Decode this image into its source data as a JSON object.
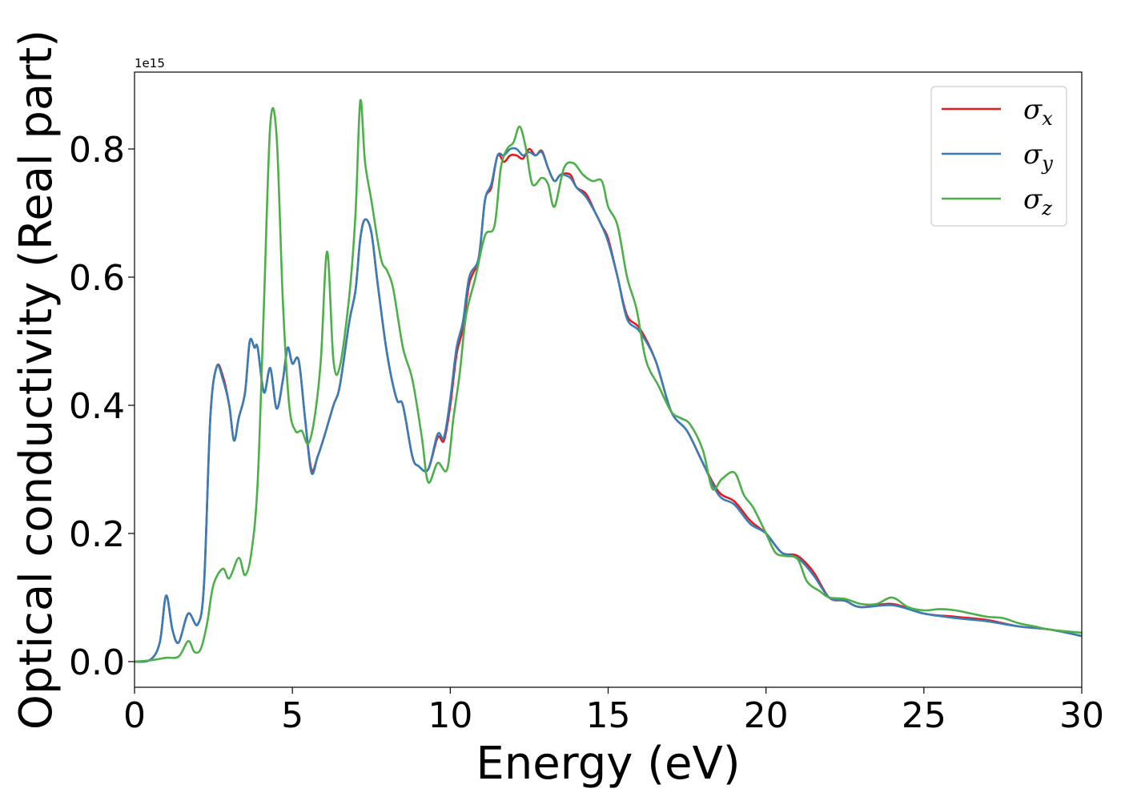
{
  "chart_data": {
    "type": "line",
    "xlabel": "Energy (eV)",
    "ylabel": "Optical conductivity (Real part)",
    "y_offset_label": "1e15",
    "xlim": [
      0,
      30
    ],
    "ylim": [
      -0.04,
      0.92
    ],
    "x_ticks": [
      0,
      5,
      10,
      15,
      20,
      25,
      30
    ],
    "y_ticks": [
      0.0,
      0.2,
      0.4,
      0.6,
      0.8
    ],
    "x_tick_labels": [
      "0",
      "5",
      "10",
      "15",
      "20",
      "25",
      "30"
    ],
    "y_tick_labels": [
      "0.0",
      "0.2",
      "0.4",
      "0.6",
      "0.8"
    ],
    "grid": false,
    "legend": {
      "position": "top-right"
    },
    "series": [
      {
        "name": "σx",
        "symbol": "σ",
        "subscript": "x",
        "color": "#e41a1c",
        "points": [
          [
            0,
            0
          ],
          [
            0.5,
            0.003
          ],
          [
            0.8,
            0.03
          ],
          [
            1.0,
            0.103
          ],
          [
            1.2,
            0.05
          ],
          [
            1.4,
            0.03
          ],
          [
            1.7,
            0.075
          ],
          [
            2.0,
            0.058
          ],
          [
            2.2,
            0.12
          ],
          [
            2.4,
            0.38
          ],
          [
            2.6,
            0.46
          ],
          [
            2.8,
            0.445
          ],
          [
            3.0,
            0.4
          ],
          [
            3.15,
            0.345
          ],
          [
            3.3,
            0.38
          ],
          [
            3.5,
            0.42
          ],
          [
            3.65,
            0.5
          ],
          [
            3.8,
            0.49
          ],
          [
            3.9,
            0.49
          ],
          [
            4.1,
            0.42
          ],
          [
            4.3,
            0.458
          ],
          [
            4.5,
            0.395
          ],
          [
            4.7,
            0.44
          ],
          [
            4.85,
            0.49
          ],
          [
            5.0,
            0.465
          ],
          [
            5.2,
            0.47
          ],
          [
            5.4,
            0.38
          ],
          [
            5.6,
            0.3
          ],
          [
            5.8,
            0.32
          ],
          [
            6.0,
            0.35
          ],
          [
            6.3,
            0.4
          ],
          [
            6.5,
            0.43
          ],
          [
            6.8,
            0.53
          ],
          [
            7.0,
            0.58
          ],
          [
            7.15,
            0.66
          ],
          [
            7.3,
            0.69
          ],
          [
            7.5,
            0.67
          ],
          [
            7.7,
            0.59
          ],
          [
            8.0,
            0.48
          ],
          [
            8.3,
            0.41
          ],
          [
            8.5,
            0.4
          ],
          [
            8.8,
            0.32
          ],
          [
            9.0,
            0.305
          ],
          [
            9.3,
            0.3
          ],
          [
            9.6,
            0.35
          ],
          [
            9.8,
            0.345
          ],
          [
            10.0,
            0.4
          ],
          [
            10.2,
            0.48
          ],
          [
            10.4,
            0.52
          ],
          [
            10.6,
            0.59
          ],
          [
            10.9,
            0.63
          ],
          [
            11.1,
            0.72
          ],
          [
            11.3,
            0.74
          ],
          [
            11.5,
            0.79
          ],
          [
            11.7,
            0.78
          ],
          [
            11.9,
            0.79
          ],
          [
            12.1,
            0.79
          ],
          [
            12.3,
            0.785
          ],
          [
            12.5,
            0.8
          ],
          [
            12.7,
            0.79
          ],
          [
            12.9,
            0.797
          ],
          [
            13.1,
            0.77
          ],
          [
            13.3,
            0.75
          ],
          [
            13.5,
            0.76
          ],
          [
            13.8,
            0.76
          ],
          [
            14.0,
            0.74
          ],
          [
            14.3,
            0.73
          ],
          [
            14.6,
            0.7
          ],
          [
            14.8,
            0.68
          ],
          [
            15.0,
            0.66
          ],
          [
            15.3,
            0.6
          ],
          [
            15.6,
            0.54
          ],
          [
            16.0,
            0.52
          ],
          [
            16.5,
            0.47
          ],
          [
            17.0,
            0.39
          ],
          [
            17.5,
            0.36
          ],
          [
            18.0,
            0.31
          ],
          [
            18.5,
            0.265
          ],
          [
            19.0,
            0.25
          ],
          [
            19.5,
            0.22
          ],
          [
            20.0,
            0.2
          ],
          [
            20.5,
            0.17
          ],
          [
            21.0,
            0.165
          ],
          [
            21.5,
            0.14
          ],
          [
            22.0,
            0.1
          ],
          [
            22.5,
            0.095
          ],
          [
            23.0,
            0.085
          ],
          [
            24.0,
            0.09
          ],
          [
            25.0,
            0.075
          ],
          [
            26.0,
            0.07
          ],
          [
            27.0,
            0.065
          ],
          [
            28.0,
            0.055
          ],
          [
            29.0,
            0.05
          ],
          [
            30.0,
            0.04
          ]
        ]
      },
      {
        "name": "σy",
        "symbol": "σ",
        "subscript": "y",
        "color": "#377eb8",
        "points": [
          [
            0,
            0
          ],
          [
            0.5,
            0.003
          ],
          [
            0.8,
            0.03
          ],
          [
            1.0,
            0.103
          ],
          [
            1.2,
            0.05
          ],
          [
            1.4,
            0.03
          ],
          [
            1.7,
            0.075
          ],
          [
            2.0,
            0.058
          ],
          [
            2.2,
            0.12
          ],
          [
            2.4,
            0.38
          ],
          [
            2.6,
            0.46
          ],
          [
            2.8,
            0.44
          ],
          [
            3.0,
            0.4
          ],
          [
            3.15,
            0.345
          ],
          [
            3.3,
            0.38
          ],
          [
            3.5,
            0.42
          ],
          [
            3.65,
            0.5
          ],
          [
            3.8,
            0.49
          ],
          [
            3.9,
            0.49
          ],
          [
            4.1,
            0.42
          ],
          [
            4.3,
            0.458
          ],
          [
            4.5,
            0.395
          ],
          [
            4.7,
            0.44
          ],
          [
            4.85,
            0.49
          ],
          [
            5.0,
            0.465
          ],
          [
            5.2,
            0.47
          ],
          [
            5.4,
            0.38
          ],
          [
            5.6,
            0.295
          ],
          [
            5.8,
            0.32
          ],
          [
            6.0,
            0.35
          ],
          [
            6.3,
            0.4
          ],
          [
            6.5,
            0.43
          ],
          [
            6.8,
            0.53
          ],
          [
            7.0,
            0.58
          ],
          [
            7.15,
            0.66
          ],
          [
            7.3,
            0.69
          ],
          [
            7.5,
            0.67
          ],
          [
            7.7,
            0.59
          ],
          [
            8.0,
            0.48
          ],
          [
            8.3,
            0.41
          ],
          [
            8.5,
            0.4
          ],
          [
            8.8,
            0.32
          ],
          [
            9.0,
            0.305
          ],
          [
            9.3,
            0.3
          ],
          [
            9.6,
            0.355
          ],
          [
            9.8,
            0.35
          ],
          [
            10.0,
            0.41
          ],
          [
            10.2,
            0.49
          ],
          [
            10.4,
            0.53
          ],
          [
            10.6,
            0.6
          ],
          [
            10.9,
            0.63
          ],
          [
            11.1,
            0.72
          ],
          [
            11.3,
            0.745
          ],
          [
            11.5,
            0.79
          ],
          [
            11.7,
            0.79
          ],
          [
            11.9,
            0.8
          ],
          [
            12.1,
            0.8
          ],
          [
            12.3,
            0.79
          ],
          [
            12.5,
            0.795
          ],
          [
            12.7,
            0.79
          ],
          [
            12.9,
            0.795
          ],
          [
            13.1,
            0.77
          ],
          [
            13.3,
            0.75
          ],
          [
            13.5,
            0.76
          ],
          [
            13.8,
            0.755
          ],
          [
            14.0,
            0.74
          ],
          [
            14.3,
            0.725
          ],
          [
            14.6,
            0.7
          ],
          [
            14.8,
            0.68
          ],
          [
            15.0,
            0.655
          ],
          [
            15.3,
            0.6
          ],
          [
            15.6,
            0.535
          ],
          [
            16.0,
            0.515
          ],
          [
            16.5,
            0.47
          ],
          [
            17.0,
            0.39
          ],
          [
            17.5,
            0.36
          ],
          [
            18.0,
            0.31
          ],
          [
            18.5,
            0.26
          ],
          [
            19.0,
            0.245
          ],
          [
            19.5,
            0.215
          ],
          [
            20.0,
            0.2
          ],
          [
            20.5,
            0.17
          ],
          [
            21.0,
            0.162
          ],
          [
            21.5,
            0.135
          ],
          [
            22.0,
            0.1
          ],
          [
            22.5,
            0.095
          ],
          [
            23.0,
            0.085
          ],
          [
            24.0,
            0.088
          ],
          [
            25.0,
            0.075
          ],
          [
            26.0,
            0.068
          ],
          [
            27.0,
            0.063
          ],
          [
            28.0,
            0.055
          ],
          [
            29.0,
            0.05
          ],
          [
            30.0,
            0.04
          ]
        ]
      },
      {
        "name": "σz",
        "symbol": "σ",
        "subscript": "z",
        "color": "#4daf4a",
        "points": [
          [
            0,
            0
          ],
          [
            0.5,
            0.002
          ],
          [
            1.0,
            0.006
          ],
          [
            1.4,
            0.008
          ],
          [
            1.7,
            0.032
          ],
          [
            1.9,
            0.015
          ],
          [
            2.1,
            0.02
          ],
          [
            2.3,
            0.06
          ],
          [
            2.5,
            0.12
          ],
          [
            2.8,
            0.145
          ],
          [
            3.0,
            0.13
          ],
          [
            3.3,
            0.162
          ],
          [
            3.5,
            0.135
          ],
          [
            3.7,
            0.17
          ],
          [
            3.9,
            0.28
          ],
          [
            4.1,
            0.56
          ],
          [
            4.3,
            0.838
          ],
          [
            4.5,
            0.82
          ],
          [
            4.7,
            0.56
          ],
          [
            4.9,
            0.4
          ],
          [
            5.1,
            0.36
          ],
          [
            5.3,
            0.36
          ],
          [
            5.5,
            0.34
          ],
          [
            5.7,
            0.38
          ],
          [
            5.9,
            0.47
          ],
          [
            6.1,
            0.64
          ],
          [
            6.3,
            0.47
          ],
          [
            6.5,
            0.46
          ],
          [
            6.8,
            0.57
          ],
          [
            7.0,
            0.7
          ],
          [
            7.15,
            0.875
          ],
          [
            7.3,
            0.78
          ],
          [
            7.5,
            0.72
          ],
          [
            7.8,
            0.63
          ],
          [
            8.0,
            0.61
          ],
          [
            8.2,
            0.58
          ],
          [
            8.5,
            0.49
          ],
          [
            8.8,
            0.44
          ],
          [
            9.1,
            0.35
          ],
          [
            9.3,
            0.28
          ],
          [
            9.6,
            0.31
          ],
          [
            9.9,
            0.3
          ],
          [
            10.1,
            0.38
          ],
          [
            10.3,
            0.45
          ],
          [
            10.5,
            0.54
          ],
          [
            10.8,
            0.6
          ],
          [
            11.1,
            0.665
          ],
          [
            11.4,
            0.68
          ],
          [
            11.6,
            0.77
          ],
          [
            11.8,
            0.8
          ],
          [
            12.0,
            0.81
          ],
          [
            12.2,
            0.835
          ],
          [
            12.4,
            0.8
          ],
          [
            12.6,
            0.745
          ],
          [
            12.9,
            0.755
          ],
          [
            13.1,
            0.745
          ],
          [
            13.3,
            0.71
          ],
          [
            13.6,
            0.77
          ],
          [
            13.9,
            0.778
          ],
          [
            14.2,
            0.76
          ],
          [
            14.5,
            0.75
          ],
          [
            14.8,
            0.75
          ],
          [
            15.0,
            0.71
          ],
          [
            15.3,
            0.68
          ],
          [
            15.6,
            0.6
          ],
          [
            15.9,
            0.55
          ],
          [
            16.2,
            0.47
          ],
          [
            16.6,
            0.43
          ],
          [
            17.0,
            0.39
          ],
          [
            17.3,
            0.38
          ],
          [
            17.6,
            0.37
          ],
          [
            18.0,
            0.33
          ],
          [
            18.3,
            0.27
          ],
          [
            18.6,
            0.285
          ],
          [
            19.0,
            0.295
          ],
          [
            19.3,
            0.26
          ],
          [
            19.6,
            0.24
          ],
          [
            20.0,
            0.2
          ],
          [
            20.3,
            0.17
          ],
          [
            20.6,
            0.165
          ],
          [
            21.0,
            0.16
          ],
          [
            21.3,
            0.125
          ],
          [
            21.7,
            0.11
          ],
          [
            22.0,
            0.1
          ],
          [
            22.5,
            0.098
          ],
          [
            23.0,
            0.09
          ],
          [
            23.5,
            0.09
          ],
          [
            24.0,
            0.1
          ],
          [
            24.5,
            0.085
          ],
          [
            25.0,
            0.08
          ],
          [
            25.5,
            0.082
          ],
          [
            26.0,
            0.08
          ],
          [
            26.5,
            0.075
          ],
          [
            27.0,
            0.07
          ],
          [
            27.5,
            0.068
          ],
          [
            28.0,
            0.06
          ],
          [
            28.5,
            0.055
          ],
          [
            29.0,
            0.05
          ],
          [
            30.0,
            0.045
          ]
        ]
      }
    ]
  }
}
